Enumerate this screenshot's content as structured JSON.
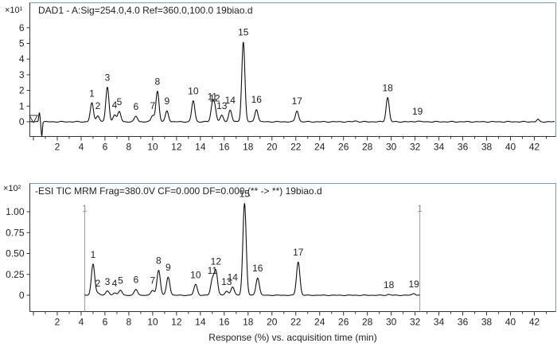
{
  "chart_data": [
    {
      "type": "line",
      "title": "DAD1 - A:Sig=254.0,4.0  Ref=360.0,100.0 19biao.d",
      "scale_label": "×10¹",
      "xlabel": "",
      "ylabel": "",
      "xlim": [
        -0.3,
        43.8
      ],
      "ylim": [
        -1,
        6.6
      ],
      "y_ticks": [
        "0",
        "1",
        "2",
        "3",
        "4",
        "5",
        "6"
      ],
      "x_ticks": [
        "2",
        "4",
        "6",
        "8",
        "10",
        "12",
        "14",
        "16",
        "18",
        "20",
        "22",
        "24",
        "26",
        "28",
        "30",
        "32",
        "34",
        "36",
        "38",
        "40",
        "42"
      ],
      "peaks": [
        {
          "label": "1",
          "x": 4.9,
          "y": 1.2
        },
        {
          "label": "2",
          "x": 5.4,
          "y": 0.4
        },
        {
          "label": "3",
          "x": 6.2,
          "y": 2.2
        },
        {
          "label": "4",
          "x": 6.8,
          "y": 0.45
        },
        {
          "label": "5",
          "x": 7.2,
          "y": 0.65
        },
        {
          "label": "6",
          "x": 8.6,
          "y": 0.35
        },
        {
          "label": "7",
          "x": 10.0,
          "y": 0.4
        },
        {
          "label": "8",
          "x": 10.4,
          "y": 1.95
        },
        {
          "label": "9",
          "x": 11.2,
          "y": 0.7
        },
        {
          "label": "10",
          "x": 13.4,
          "y": 1.35
        },
        {
          "label": "11",
          "x": 15.0,
          "y": 1.0
        },
        {
          "label": "12",
          "x": 15.2,
          "y": 0.9
        },
        {
          "label": "13",
          "x": 15.8,
          "y": 0.4
        },
        {
          "label": "14",
          "x": 16.5,
          "y": 0.75
        },
        {
          "label": "15",
          "x": 17.6,
          "y": 5.1
        },
        {
          "label": "16",
          "x": 18.7,
          "y": 0.8
        },
        {
          "label": "17",
          "x": 22.1,
          "y": 0.7
        },
        {
          "label": "18",
          "x": 29.7,
          "y": 1.55
        },
        {
          "label": "19",
          "x": 32.2,
          "y": 0.05
        }
      ]
    },
    {
      "type": "line",
      "title": "-ESI TIC MRM Frag=380.0V CF=0.000 DF=0.000 (** -> **) 19biao.d",
      "scale_label": "×10²",
      "xlabel": "Response (%) vs. acquisition time (min)",
      "ylabel": "",
      "xlim": [
        -0.3,
        43.8
      ],
      "ylim": [
        -0.1,
        1.1
      ],
      "y_ticks": [
        "0",
        "0.25",
        "0.50",
        "0.75",
        "1.00"
      ],
      "x_ticks": [
        "2",
        "4",
        "6",
        "8",
        "10",
        "12",
        "14",
        "16",
        "18",
        "20",
        "22",
        "24",
        "26",
        "28",
        "30",
        "32",
        "34",
        "36",
        "38",
        "40",
        "42"
      ],
      "marker_label": "1",
      "marker_x": [
        4.3,
        32.4
      ],
      "peaks": [
        {
          "label": "1",
          "x": 5.0,
          "y": 0.37
        },
        {
          "label": "2",
          "x": 5.4,
          "y": 0.03
        },
        {
          "label": "3",
          "x": 6.2,
          "y": 0.05
        },
        {
          "label": "4",
          "x": 6.8,
          "y": 0.03
        },
        {
          "label": "5",
          "x": 7.3,
          "y": 0.06
        },
        {
          "label": "6",
          "x": 8.6,
          "y": 0.07
        },
        {
          "label": "7",
          "x": 10.0,
          "y": 0.06
        },
        {
          "label": "8",
          "x": 10.5,
          "y": 0.3
        },
        {
          "label": "9",
          "x": 11.3,
          "y": 0.22
        },
        {
          "label": "10",
          "x": 13.6,
          "y": 0.13
        },
        {
          "label": "11",
          "x": 15.0,
          "y": 0.18
        },
        {
          "label": "12",
          "x": 15.3,
          "y": 0.29
        },
        {
          "label": "13",
          "x": 16.2,
          "y": 0.05
        },
        {
          "label": "14",
          "x": 16.7,
          "y": 0.1
        },
        {
          "label": "15",
          "x": 17.7,
          "y": 1.1
        },
        {
          "label": "16",
          "x": 18.8,
          "y": 0.21
        },
        {
          "label": "17",
          "x": 22.2,
          "y": 0.4
        },
        {
          "label": "18",
          "x": 29.8,
          "y": 0.01
        },
        {
          "label": "19",
          "x": 31.9,
          "y": 0.02
        }
      ]
    }
  ]
}
